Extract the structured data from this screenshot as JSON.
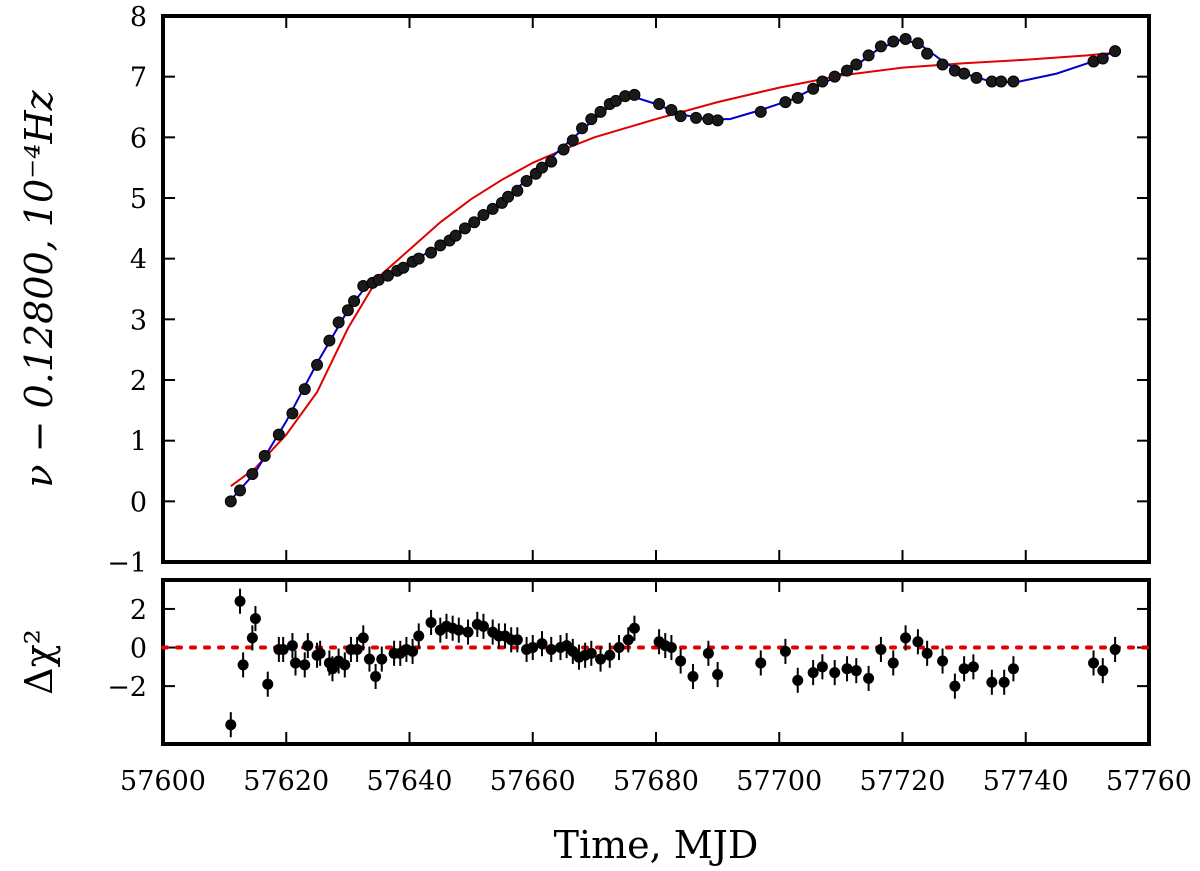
{
  "figure": {
    "colors": {
      "data_points": "#000000",
      "point_fill": "#1a1a1a",
      "model_blue": "#0000cc",
      "model_red": "#e00000",
      "zero_line": "#e00000"
    }
  },
  "chart_data": [
    {
      "type": "scatter",
      "panel": "top",
      "xlabel": "",
      "ylabel": "ν − 0.12800, 10⁻⁴Hz",
      "xlim": [
        57600,
        57760
      ],
      "ylim": [
        -1,
        8
      ],
      "y_ticks": [
        -1,
        0,
        1,
        2,
        3,
        4,
        5,
        6,
        7,
        8
      ],
      "y_tick_labels": [
        "−1",
        "0",
        "1",
        "2",
        "3",
        "4",
        "5",
        "6",
        "7",
        "8"
      ],
      "grid": false,
      "series": [
        {
          "kind": "points",
          "x": [
            57611.0,
            57612.5,
            57614.5,
            57616.5,
            57618.8,
            57621.0,
            57623.0,
            57625.0,
            57627.0,
            57628.5,
            57630.0,
            57631.0,
            57632.5,
            57634.0,
            57635.0,
            57636.5,
            57638.0,
            57639.0,
            57640.5,
            57641.5,
            57643.5,
            57645.0,
            57646.5,
            57647.5,
            57649.0,
            57650.5,
            57652.0,
            57653.5,
            57655.0,
            57656.0,
            57657.5,
            57659.0,
            57660.5,
            57661.5,
            57663.0,
            57665.0,
            57666.5,
            57668.0,
            57669.5,
            57671.0,
            57672.5,
            57673.5,
            57675.0,
            57676.5,
            57680.5,
            57682.5,
            57684.0,
            57686.5,
            57688.5,
            57690.0,
            57697.0,
            57701.0,
            57703.0,
            57705.5,
            57707.0,
            57709.0,
            57711.0,
            57712.5,
            57714.5,
            57716.5,
            57718.5,
            57720.5,
            57722.5,
            57724.0,
            57726.5,
            57728.5,
            57730.0,
            57732.0,
            57734.5,
            57736.0,
            57738.0,
            57751.0,
            57752.5,
            57754.5
          ],
          "y": [
            0.0,
            0.18,
            0.45,
            0.75,
            1.1,
            1.45,
            1.85,
            2.25,
            2.65,
            2.95,
            3.15,
            3.3,
            3.55,
            3.6,
            3.65,
            3.72,
            3.8,
            3.85,
            3.95,
            4.0,
            4.1,
            4.22,
            4.3,
            4.38,
            4.5,
            4.6,
            4.72,
            4.82,
            4.92,
            5.02,
            5.12,
            5.28,
            5.4,
            5.5,
            5.6,
            5.8,
            5.95,
            6.15,
            6.3,
            6.42,
            6.55,
            6.6,
            6.68,
            6.7,
            6.55,
            6.45,
            6.35,
            6.32,
            6.3,
            6.28,
            6.42,
            6.58,
            6.65,
            6.8,
            6.92,
            7.0,
            7.1,
            7.2,
            7.35,
            7.5,
            7.58,
            7.62,
            7.55,
            7.38,
            7.2,
            7.1,
            7.05,
            6.98,
            6.92,
            6.92,
            6.92,
            7.25,
            7.3,
            7.42
          ]
        },
        {
          "kind": "line",
          "x": [
            57611,
            57615,
            57620,
            57625,
            57630,
            57633,
            57636,
            57640,
            57645,
            57650,
            57655,
            57660,
            57665,
            57670,
            57673,
            57676,
            57680,
            57684,
            57688,
            57692,
            57697,
            57702,
            57707,
            57712,
            57716,
            57720,
            57723,
            57727,
            57731,
            57735,
            57739,
            57745,
            57750,
            57755
          ],
          "y": [
            0.02,
            0.48,
            1.32,
            2.28,
            3.15,
            3.55,
            3.72,
            3.93,
            4.22,
            4.58,
            4.95,
            5.38,
            5.85,
            6.3,
            6.55,
            6.68,
            6.55,
            6.38,
            6.3,
            6.3,
            6.45,
            6.62,
            6.88,
            7.15,
            7.45,
            7.62,
            7.52,
            7.22,
            7.02,
            6.9,
            6.92,
            7.05,
            7.22,
            7.44
          ]
        },
        {
          "kind": "line",
          "x": [
            57611,
            57615,
            57620,
            57625,
            57630,
            57635,
            57640,
            57645,
            57650,
            57655,
            57660,
            57665,
            57670,
            57675,
            57680,
            57690,
            57700,
            57710,
            57720,
            57730,
            57740,
            57750,
            57755
          ],
          "y": [
            0.25,
            0.55,
            1.1,
            1.8,
            2.85,
            3.7,
            4.15,
            4.6,
            4.98,
            5.3,
            5.58,
            5.8,
            6.0,
            6.15,
            6.3,
            6.58,
            6.82,
            7.02,
            7.15,
            7.22,
            7.28,
            7.35,
            7.4
          ]
        }
      ]
    },
    {
      "type": "scatter",
      "panel": "bottom",
      "xlabel": "Time, MJD",
      "ylabel": "Δχ²",
      "xlim": [
        57600,
        57760
      ],
      "ylim": [
        -5,
        3.5
      ],
      "x_ticks": [
        57600,
        57620,
        57640,
        57660,
        57680,
        57700,
        57720,
        57740,
        57760
      ],
      "x_tick_labels": [
        "57600",
        "57620",
        "57640",
        "57660",
        "57680",
        "57700",
        "57720",
        "57740",
        "57760"
      ],
      "y_ticks": [
        -2,
        0,
        2
      ],
      "y_tick_labels": [
        "−2",
        "0",
        "2"
      ],
      "grid": false,
      "zero_line": 0,
      "series": [
        {
          "kind": "points_with_errors",
          "x": [
            57611.0,
            57612.5,
            57613.0,
            57614.5,
            57615.0,
            57617.0,
            57618.8,
            57619.5,
            57621.0,
            57621.5,
            57623.0,
            57623.5,
            57625.0,
            57625.5,
            57627.0,
            57627.5,
            57628.5,
            57629.5,
            57630.5,
            57631.5,
            57632.5,
            57633.5,
            57634.5,
            57635.5,
            57637.5,
            57638.5,
            57639.5,
            57640.5,
            57641.5,
            57643.5,
            57645.0,
            57646.0,
            57647.0,
            57648.0,
            57649.5,
            57651.0,
            57652.0,
            57653.5,
            57654.5,
            57655.5,
            57656.5,
            57657.5,
            57659.0,
            57660.0,
            57661.5,
            57663.0,
            57664.5,
            57665.5,
            57666.5,
            57667.5,
            57668.5,
            57669.5,
            57671.0,
            57672.5,
            57674.0,
            57675.5,
            57676.5,
            57680.5,
            57681.5,
            57682.5,
            57684.0,
            57686.0,
            57688.5,
            57690.0,
            57697.0,
            57701.0,
            57703.0,
            57705.5,
            57707.0,
            57709.0,
            57711.0,
            57712.5,
            57714.5,
            57716.5,
            57718.5,
            57720.5,
            57722.5,
            57724.0,
            57726.5,
            57728.5,
            57730.0,
            57731.5,
            57734.5,
            57736.5,
            57738.0,
            57751.0,
            57752.5,
            57754.5
          ],
          "y": [
            -4.0,
            2.4,
            -0.9,
            0.5,
            1.5,
            -1.9,
            -0.1,
            -0.1,
            0.1,
            -0.8,
            -0.9,
            0.1,
            -0.4,
            -0.3,
            -0.8,
            -1.1,
            -0.7,
            -0.9,
            -0.1,
            -0.1,
            0.5,
            -0.6,
            -1.5,
            -0.6,
            -0.3,
            -0.3,
            -0.1,
            -0.2,
            0.6,
            1.3,
            0.9,
            1.1,
            1.0,
            0.9,
            0.8,
            1.2,
            1.1,
            0.8,
            0.6,
            0.6,
            0.4,
            0.4,
            -0.1,
            0.0,
            0.2,
            -0.1,
            0.0,
            0.1,
            -0.2,
            -0.5,
            -0.4,
            -0.3,
            -0.6,
            -0.4,
            0.0,
            0.4,
            1.0,
            0.3,
            0.1,
            0.0,
            -0.7,
            -1.5,
            -0.3,
            -1.4,
            -0.8,
            -0.2,
            -1.7,
            -1.3,
            -1.0,
            -1.3,
            -1.1,
            -1.2,
            -1.6,
            -0.1,
            -0.8,
            0.5,
            0.3,
            -0.3,
            -0.7,
            -2.0,
            -1.1,
            -1.0,
            -1.8,
            -1.8,
            -1.1,
            -0.8,
            -1.2,
            -0.1
          ],
          "error": 0.65
        }
      ]
    }
  ]
}
